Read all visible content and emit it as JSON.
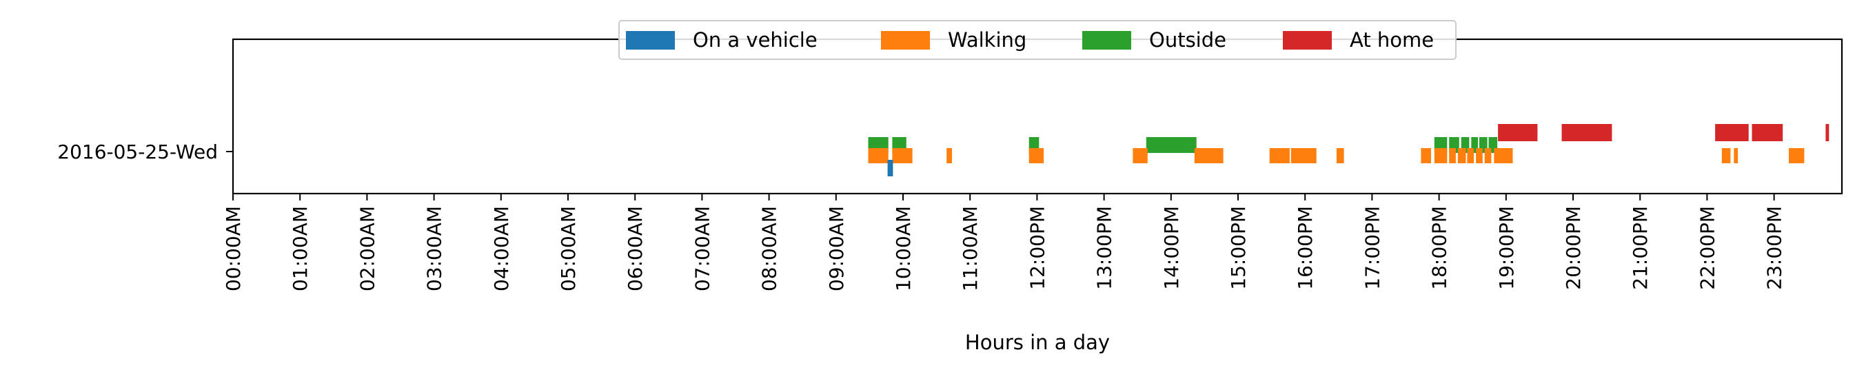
{
  "chart_data": {
    "type": "timeline",
    "xlabel": "Hours in a day",
    "ylabel": "",
    "xlim": [
      0,
      24
    ],
    "x_ticks": [
      "00:00AM",
      "01:00AM",
      "02:00AM",
      "03:00AM",
      "04:00AM",
      "05:00AM",
      "06:00AM",
      "07:00AM",
      "08:00AM",
      "09:00AM",
      "10:00AM",
      "11:00AM",
      "12:00PM",
      "13:00PM",
      "14:00PM",
      "15:00PM",
      "16:00PM",
      "17:00PM",
      "18:00PM",
      "19:00PM",
      "20:00PM",
      "21:00PM",
      "22:00PM",
      "23:00PM"
    ],
    "categories": [
      "2016-05-25-Wed"
    ],
    "legend_position": "top-center",
    "grid": false,
    "series": [
      {
        "name": "On a vehicle",
        "color": "#1f77b4",
        "intervals": [
          [
            9.77,
            9.85
          ]
        ]
      },
      {
        "name": "Walking",
        "color": "#ff7f0e",
        "intervals": [
          [
            9.48,
            9.78
          ],
          [
            9.84,
            10.14
          ],
          [
            10.65,
            10.73
          ],
          [
            11.88,
            12.1
          ],
          [
            13.43,
            13.65
          ],
          [
            14.35,
            14.78
          ],
          [
            15.47,
            15.77
          ],
          [
            15.79,
            16.17
          ],
          [
            16.47,
            16.58
          ],
          [
            17.73,
            17.88
          ],
          [
            17.93,
            18.12
          ],
          [
            18.15,
            18.25
          ],
          [
            18.28,
            18.4
          ],
          [
            18.42,
            18.52
          ],
          [
            18.55,
            18.65
          ],
          [
            18.68,
            18.78
          ],
          [
            18.82,
            19.1
          ],
          [
            22.22,
            22.35
          ],
          [
            22.4,
            22.46
          ],
          [
            23.22,
            23.45
          ]
        ]
      },
      {
        "name": "Outside",
        "color": "#2ca02c",
        "intervals": [
          [
            9.48,
            9.78
          ],
          [
            9.84,
            10.05
          ],
          [
            11.88,
            12.03
          ],
          [
            13.63,
            14.38
          ],
          [
            17.93,
            18.12
          ],
          [
            18.15,
            18.3
          ],
          [
            18.33,
            18.45
          ],
          [
            18.48,
            18.58
          ],
          [
            18.6,
            18.72
          ],
          [
            18.74,
            18.87
          ]
        ]
      },
      {
        "name": "At home",
        "color": "#d62728",
        "intervals": [
          [
            18.88,
            19.47
          ],
          [
            19.83,
            20.58
          ],
          [
            22.12,
            22.62
          ],
          [
            22.67,
            23.13
          ],
          [
            23.77,
            23.82
          ]
        ]
      }
    ]
  }
}
